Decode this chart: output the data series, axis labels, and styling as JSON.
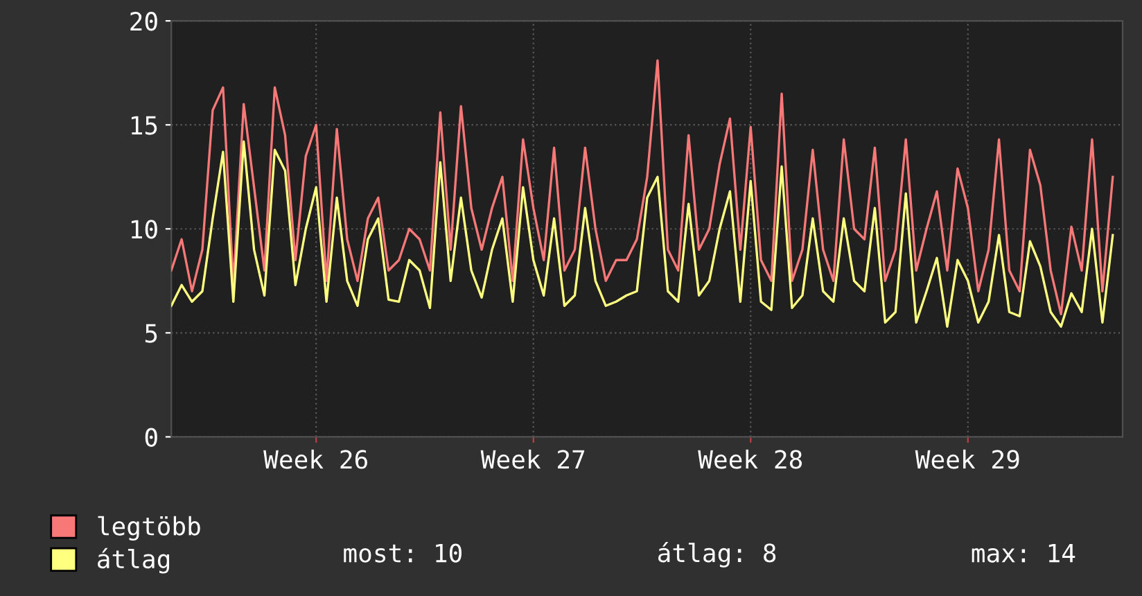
{
  "chart_data": {
    "type": "line",
    "categories": [
      null,
      null,
      null,
      null,
      null,
      null,
      null,
      null,
      null,
      null,
      null,
      null,
      null,
      null,
      "Week 26",
      null,
      null,
      null,
      null,
      null,
      null,
      null,
      null,
      null,
      null,
      null,
      null,
      null,
      null,
      null,
      null,
      null,
      null,
      null,
      null,
      "Week 27",
      null,
      null,
      null,
      null,
      null,
      null,
      null,
      null,
      null,
      null,
      null,
      null,
      null,
      null,
      null,
      null,
      null,
      null,
      null,
      null,
      "Week 28",
      null,
      null,
      null,
      null,
      null,
      null,
      null,
      null,
      null,
      null,
      null,
      null,
      null,
      null,
      null,
      null,
      null,
      null,
      null,
      null,
      "Week 29",
      null,
      null,
      null,
      null,
      null,
      null,
      null,
      null,
      null,
      null,
      null,
      null,
      null,
      null
    ],
    "series": [
      {
        "name": "legtöbb",
        "color": "#f87878",
        "values": [
          8,
          9.5,
          7,
          9,
          15.7,
          16.8,
          7.3,
          16,
          12,
          8,
          16.8,
          14.5,
          8.5,
          13.5,
          15,
          7.5,
          14.8,
          9.5,
          7.5,
          10.5,
          11.5,
          8,
          8.5,
          10,
          9.5,
          8,
          15.6,
          9,
          15.9,
          11,
          9,
          11,
          12.5,
          7.5,
          14.3,
          11,
          8.5,
          13.9,
          8,
          9,
          13.9,
          10,
          7.5,
          8.5,
          8.5,
          9.5,
          12.5,
          18.1,
          9,
          8,
          14.5,
          9,
          10,
          13.1,
          15.3,
          9,
          14.9,
          8.5,
          7.5,
          16.5,
          7.5,
          9,
          13.8,
          9,
          7.5,
          14.3,
          10,
          9.5,
          13.9,
          7.5,
          9,
          14.3,
          8,
          10,
          11.8,
          8,
          12.9,
          11,
          7,
          9,
          14.3,
          8,
          7,
          13.8,
          12.1,
          8,
          5.9,
          10.1,
          8,
          14.3,
          7,
          12.5
        ]
      },
      {
        "name": "átlag",
        "color": "#ffff80",
        "values": [
          6.3,
          7.3,
          6.5,
          7,
          10.5,
          13.7,
          6.5,
          14.2,
          9,
          6.8,
          13.8,
          12.8,
          7.3,
          10,
          12,
          6.5,
          11.5,
          7.5,
          6.3,
          9.5,
          10.5,
          6.6,
          6.5,
          8.5,
          8,
          6.2,
          13.2,
          7.5,
          11.5,
          8,
          6.7,
          9,
          10.5,
          6.5,
          12,
          8.5,
          6.8,
          10.5,
          6.3,
          6.8,
          11,
          7.5,
          6.3,
          6.5,
          6.8,
          7,
          11.5,
          12.5,
          7,
          6.5,
          11.2,
          6.8,
          7.5,
          10,
          11.8,
          6.5,
          12.3,
          6.5,
          6.1,
          13,
          6.2,
          6.8,
          10.5,
          7,
          6.5,
          10.5,
          7.5,
          7,
          11,
          5.5,
          6,
          11.7,
          5.5,
          7,
          8.6,
          5.3,
          8.5,
          7.5,
          5.5,
          6.5,
          9.7,
          6,
          5.8,
          9.4,
          8.2,
          6,
          5.3,
          6.9,
          6,
          10,
          5.5,
          9.7
        ]
      }
    ],
    "ylim": [
      0,
      20
    ],
    "yticks": [
      0,
      5,
      10,
      15,
      20
    ],
    "grid": true,
    "legend": "bottom left",
    "marker": "none",
    "line_style": "solid",
    "annotations": [
      "most: 10",
      "átlag: 8",
      "max: 14"
    ]
  }
}
